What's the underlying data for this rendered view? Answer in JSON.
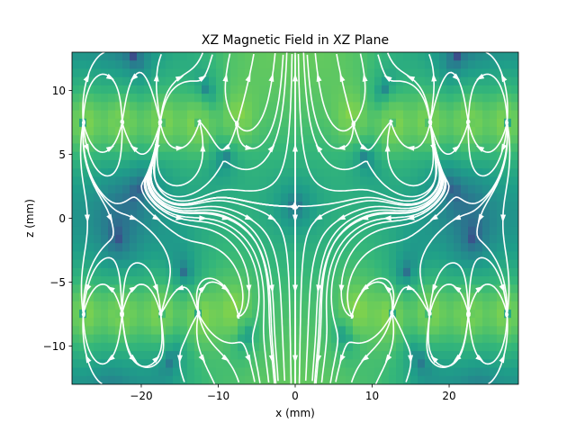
{
  "chart_data": {
    "type": "heatmap",
    "title": "XZ Magnetic Field in XZ Plane",
    "xlabel": "x (mm)",
    "ylabel": "z (mm)",
    "xlim": [
      -29,
      29
    ],
    "ylim": [
      -13,
      13
    ],
    "xticks": [
      -20,
      -10,
      0,
      10,
      20
    ],
    "yticks": [
      -10,
      -5,
      0,
      5,
      10
    ],
    "xtick_labels": [
      "−20",
      "−10",
      "0",
      "10",
      "20"
    ],
    "ytick_labels": [
      "−10",
      "−5",
      "0",
      "5",
      "10"
    ],
    "colormap": "viridis",
    "streamline_color": "#ffffff",
    "grid": false,
    "magnet_rows_z": [
      7.5,
      -7.5
    ],
    "magnet_edges_x": [
      -27.5,
      -22.5,
      -17.5,
      -12.5,
      -7.5,
      7.5,
      12.5,
      17.5,
      22.5,
      27.5
    ],
    "field_minimum": {
      "x": 0,
      "z": 0
    }
  }
}
